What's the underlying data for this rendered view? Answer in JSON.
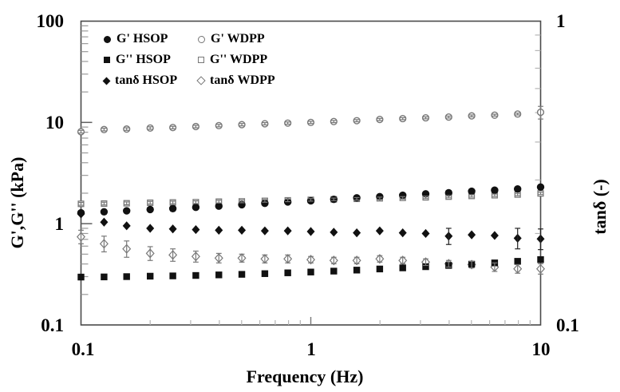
{
  "figure": {
    "xlabel": "Frequency (Hz)",
    "ylabel_left": "G',G'' (kPa)",
    "ylabel_right": "tanδ (-)",
    "left_ticks": [
      "100",
      "10",
      "1",
      "0.1"
    ],
    "bottom_ticks": [
      "0.1",
      "1",
      "10"
    ],
    "right_ticks": [
      "1",
      "0.1"
    ]
  },
  "legend": {
    "items": [
      {
        "label": "G' HSOP",
        "marker": "filled-circle"
      },
      {
        "label": "G' WDPP",
        "marker": "open-circle"
      },
      {
        "label": "G'' HSOP",
        "marker": "filled-square"
      },
      {
        "label": "G'' WDPP",
        "marker": "open-square"
      },
      {
        "label": "tanδ HSOP",
        "marker": "filled-diamond"
      },
      {
        "label": "tanδ WDPP",
        "marker": "open-diamond"
      }
    ]
  },
  "colors": {
    "background": "#ffffff",
    "frame": "#4a4a4a",
    "filled_marker": "#111111",
    "open_marker_stroke": "#787878",
    "minor_tick": "#b5b5b5",
    "major_tick": "#777777",
    "text": "#000000"
  },
  "chart_data": {
    "type": "scatter",
    "title": "",
    "x_axis": {
      "label": "Frequency (Hz)",
      "scale": "log",
      "range": [
        0.1,
        10
      ],
      "ticks": [
        0.1,
        1,
        10
      ]
    },
    "y_axis_left": {
      "label": "G',G'' (kPa)",
      "scale": "log",
      "range": [
        0.1,
        100
      ],
      "ticks": [
        0.1,
        1,
        10,
        100
      ]
    },
    "y_axis_right": {
      "label": "tanδ (-)",
      "scale": "log",
      "range": [
        0.1,
        1
      ],
      "ticks": [
        0.1,
        1
      ]
    },
    "grid": false,
    "legend_position": "inside top-left, two columns, no frame",
    "x": [
      0.1,
      0.126,
      0.158,
      0.2,
      0.251,
      0.316,
      0.398,
      0.501,
      0.631,
      0.794,
      1.0,
      1.259,
      1.585,
      1.995,
      2.512,
      3.162,
      3.981,
      5.012,
      6.31,
      7.943,
      10.0
    ],
    "series": [
      {
        "name": "G' WDPP",
        "axis": "left",
        "marker": "open-circle",
        "values": [
          8.1,
          8.5,
          8.6,
          8.8,
          8.9,
          9.1,
          9.3,
          9.5,
          9.7,
          9.85,
          10.0,
          10.2,
          10.4,
          10.7,
          10.9,
          11.1,
          11.3,
          11.6,
          11.8,
          12.1,
          12.6
        ],
        "errors": [
          0.25,
          0.25,
          0.25,
          0.25,
          0.25,
          0.25,
          0.25,
          0.25,
          0.25,
          0.25,
          0.25,
          0.25,
          0.25,
          0.25,
          0.25,
          0.25,
          0.25,
          0.25,
          0.25,
          0.25,
          1.8
        ]
      },
      {
        "name": "G'' WDPP",
        "axis": "left",
        "marker": "open-square",
        "values": [
          1.57,
          1.58,
          1.59,
          1.61,
          1.62,
          1.63,
          1.65,
          1.66,
          1.68,
          1.7,
          1.72,
          1.74,
          1.76,
          1.78,
          1.8,
          1.82,
          1.85,
          1.88,
          1.91,
          1.94,
          1.99
        ],
        "errors": [
          0.05,
          0.05,
          0.05,
          0.05,
          0.05,
          0.05,
          0.05,
          0.05,
          0.05,
          0.05,
          0.05,
          0.05,
          0.05,
          0.05,
          0.05,
          0.05,
          0.05,
          0.05,
          0.05,
          0.05,
          0.05
        ]
      },
      {
        "name": "G' HSOP",
        "axis": "left",
        "marker": "filled-circle",
        "values": [
          1.28,
          1.31,
          1.34,
          1.38,
          1.41,
          1.45,
          1.49,
          1.54,
          1.59,
          1.64,
          1.68,
          1.74,
          1.8,
          1.85,
          1.91,
          1.97,
          2.02,
          2.09,
          2.14,
          2.2,
          2.3
        ],
        "errors": [
          0,
          0,
          0,
          0,
          0,
          0,
          0,
          0,
          0,
          0,
          0,
          0,
          0,
          0,
          0,
          0,
          0,
          0,
          0,
          0,
          0
        ]
      },
      {
        "name": "tanδ WDPP",
        "axis": "right",
        "marker": "open-diamond",
        "values": [
          0.195,
          0.185,
          0.178,
          0.172,
          0.17,
          0.168,
          0.166,
          0.166,
          0.165,
          0.165,
          0.164,
          0.163,
          0.163,
          0.165,
          0.163,
          0.161,
          0.159,
          0.158,
          0.155,
          0.153,
          0.153
        ],
        "errors": [
          0.01,
          0.011,
          0.011,
          0.009,
          0.008,
          0.007,
          0.006,
          0.005,
          0.005,
          0.005,
          0.004,
          0.004,
          0.004,
          0.004,
          0.004,
          0.004,
          0.004,
          0.004,
          0.005,
          0.005,
          0.006
        ]
      },
      {
        "name": "G'' HSOP",
        "axis": "left",
        "marker": "filled-square",
        "values": [
          0.297,
          0.298,
          0.3,
          0.303,
          0.305,
          0.308,
          0.312,
          0.316,
          0.321,
          0.327,
          0.333,
          0.34,
          0.348,
          0.357,
          0.366,
          0.376,
          0.387,
          0.398,
          0.41,
          0.425,
          0.442
        ],
        "errors": [
          0,
          0,
          0,
          0,
          0,
          0,
          0,
          0,
          0,
          0,
          0,
          0,
          0,
          0,
          0,
          0,
          0,
          0,
          0,
          0,
          0
        ]
      },
      {
        "name": "tanδ HSOP",
        "axis": "right",
        "marker": "filled-diamond",
        "values": [
          0.232,
          0.218,
          0.212,
          0.208,
          0.207,
          0.206,
          0.205,
          0.205,
          0.204,
          0.204,
          0.203,
          0.202,
          0.201,
          0.204,
          0.201,
          0.2,
          0.196,
          0.198,
          0.197,
          0.193,
          0.192
        ],
        "errors": [
          0,
          0,
          0,
          0,
          0,
          0,
          0,
          0,
          0,
          0,
          0,
          0,
          0,
          0,
          0,
          0,
          0.012,
          0,
          0,
          0.015,
          0.015
        ]
      }
    ]
  }
}
